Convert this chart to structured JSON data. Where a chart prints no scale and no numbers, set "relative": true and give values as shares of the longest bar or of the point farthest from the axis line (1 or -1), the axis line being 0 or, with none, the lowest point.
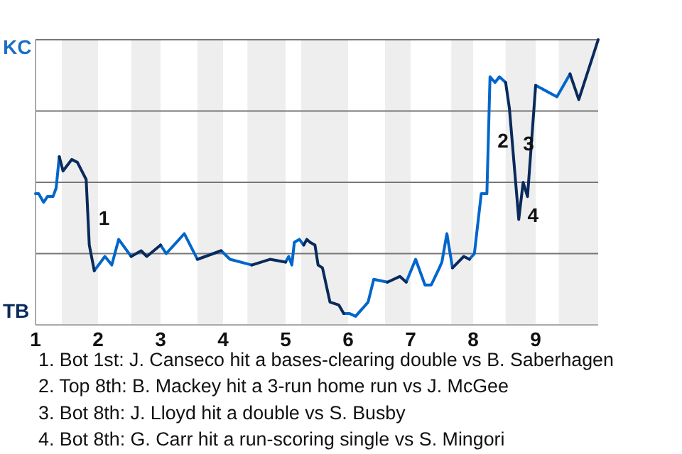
{
  "chart_data": {
    "type": "line",
    "relative": true,
    "grid": true,
    "marker": "none",
    "line_style": "solid",
    "x": [
      1,
      1.05,
      1.13,
      1.19,
      1.28,
      1.33,
      1.38,
      1.44,
      1.58,
      1.67,
      1.81,
      1.86,
      1.94,
      2.11,
      2.22,
      2.33,
      2.53,
      2.69,
      2.78,
      3.0,
      3.09,
      3.38,
      3.59,
      3.97,
      4.11,
      4.46,
      4.75,
      5.0,
      5.05,
      5.1,
      5.14,
      5.22,
      5.29,
      5.34,
      5.39,
      5.47,
      5.52,
      5.59,
      5.71,
      5.85,
      5.93,
      6.02,
      6.12,
      6.32,
      6.41,
      6.63,
      6.83,
      6.93,
      7.08,
      7.23,
      7.33,
      7.46,
      7.5,
      7.58,
      7.67,
      7.85,
      7.94,
      8.02,
      8.13,
      8.22,
      8.27,
      8.35,
      8.42,
      8.52,
      8.58,
      8.73,
      8.8,
      8.87,
      9.0,
      9.34,
      9.55,
      9.69,
      10.0
    ],
    "xlim": [
      1,
      10
    ],
    "xticks": [
      1,
      2,
      3,
      4,
      5,
      6,
      7,
      8,
      9
    ],
    "series": [
      {
        "color": "#0066cc",
        "values": [
          0.46,
          0.46,
          0.43,
          0.45,
          0.45,
          0.48,
          0.59,
          null,
          null,
          null,
          null,
          null,
          0.19,
          0.24,
          0.21,
          0.3,
          0.24,
          null,
          null,
          0.28,
          0.25,
          0.32,
          0.23,
          0.26,
          0.23,
          0.21,
          null,
          0.22,
          0.24,
          0.21,
          0.29,
          0.3,
          0.28,
          null,
          null,
          null,
          null,
          null,
          null,
          null,
          0.04,
          0.04,
          0.03,
          0.08,
          0.16,
          0.15,
          null,
          0.15,
          0.23,
          0.14,
          0.14,
          0.2,
          0.22,
          0.32,
          0.2,
          null,
          0.23,
          0.25,
          0.46,
          0.46,
          0.87,
          0.85,
          0.87,
          0.85,
          null,
          null,
          null,
          null,
          0.84,
          0.8,
          0.88,
          null,
          null
        ]
      },
      {
        "color": "#0a2a5c",
        "values": [
          null,
          null,
          null,
          null,
          null,
          null,
          0.59,
          0.54,
          0.58,
          0.57,
          0.51,
          0.28,
          0.19,
          null,
          null,
          null,
          0.24,
          0.26,
          0.24,
          0.28,
          null,
          null,
          0.23,
          0.26,
          null,
          0.21,
          0.23,
          0.22,
          null,
          null,
          null,
          null,
          0.28,
          0.3,
          0.29,
          0.28,
          0.21,
          0.2,
          0.08,
          0.07,
          0.04,
          null,
          null,
          null,
          null,
          0.15,
          0.17,
          0.15,
          null,
          null,
          null,
          null,
          null,
          null,
          0.2,
          0.24,
          0.23,
          null,
          null,
          null,
          null,
          null,
          null,
          0.85,
          0.76,
          0.37,
          0.5,
          0.45,
          0.84,
          null,
          0.88,
          0.79,
          1.0
        ]
      }
    ],
    "bands": [
      {
        "axis": "x",
        "from": 1.42,
        "to": 2,
        "color": "#eeeeee"
      },
      {
        "axis": "x",
        "from": 2.53,
        "to": 3,
        "color": "#eeeeee"
      },
      {
        "axis": "x",
        "from": 3.59,
        "to": 4,
        "color": "#eeeeee"
      },
      {
        "axis": "x",
        "from": 4.39,
        "to": 5,
        "color": "#eeeeee"
      },
      {
        "axis": "x",
        "from": 5.25,
        "to": 6,
        "color": "#eeeeee"
      },
      {
        "axis": "x",
        "from": 6.59,
        "to": 7,
        "color": "#eeeeee"
      },
      {
        "axis": "x",
        "from": 7.65,
        "to": 8,
        "color": "#eeeeee"
      },
      {
        "axis": "x",
        "from": 8.52,
        "to": 9,
        "color": "#eeeeee"
      },
      {
        "axis": "x",
        "from": 9.37,
        "to": 10,
        "color": "#eeeeee"
      }
    ],
    "annotations": [
      "KC",
      "TB",
      "1. Bot 1st: J. Canseco hit a bases-clearing double vs B. Saberhagen",
      "2. Top 8th: B. Mackey hit a 3-run home run vs J. McGee",
      "3. Bot 8th: J. Lloyd hit a double vs S. Busby",
      "4. Bot 8th: G. Carr hit a run-scoring single vs S. Mingori",
      {
        "text": "1",
        "x": 1.94,
        "y": 0.37
      },
      {
        "text": "2",
        "x": 8.32,
        "y": 0.64
      },
      {
        "text": "3",
        "x": 8.73,
        "y": 0.63
      },
      {
        "text": "4",
        "x": 8.8,
        "y": 0.38
      }
    ]
  }
}
